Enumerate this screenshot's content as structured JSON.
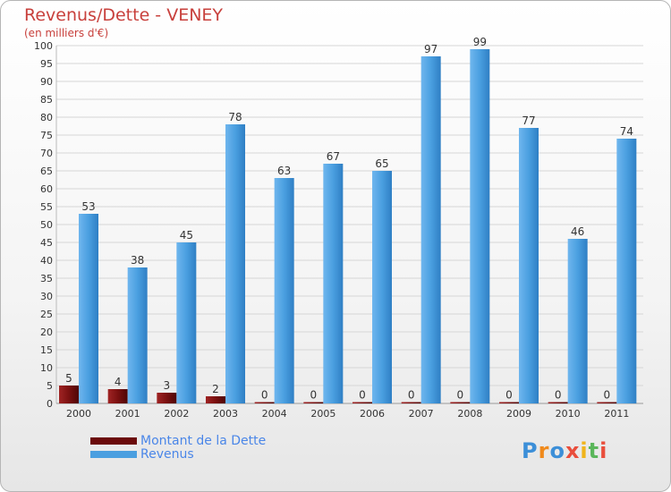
{
  "header": {
    "title": "Revenus/Dette - VENEY",
    "subtitle": "(en milliers d'€)"
  },
  "colors": {
    "dette": "#7a1010",
    "revenus": "#4a9fe0",
    "title": "#c8403c",
    "legend_text": "#4a86e8"
  },
  "legend": {
    "items": [
      {
        "label": "Montant de la Dette"
      },
      {
        "label": "Revenus"
      }
    ]
  },
  "logo": {
    "text": "Proxiti"
  },
  "chart_data": {
    "type": "bar",
    "title": "Revenus/Dette - VENEY",
    "ylabel": "(en milliers d'€)",
    "xlabel": "",
    "ylim": [
      0,
      100
    ],
    "ytick_step": 5,
    "categories": [
      "2000",
      "2001",
      "2002",
      "2003",
      "2004",
      "2005",
      "2006",
      "2007",
      "2008",
      "2009",
      "2010",
      "2011"
    ],
    "series": [
      {
        "name": "Montant de la Dette",
        "values": [
          5,
          4,
          3,
          2,
          0,
          0,
          0,
          0,
          0,
          0,
          0,
          0
        ]
      },
      {
        "name": "Revenus",
        "values": [
          53,
          38,
          45,
          78,
          63,
          67,
          65,
          97,
          99,
          77,
          46,
          74
        ]
      }
    ],
    "legend_position": "bottom-left"
  }
}
